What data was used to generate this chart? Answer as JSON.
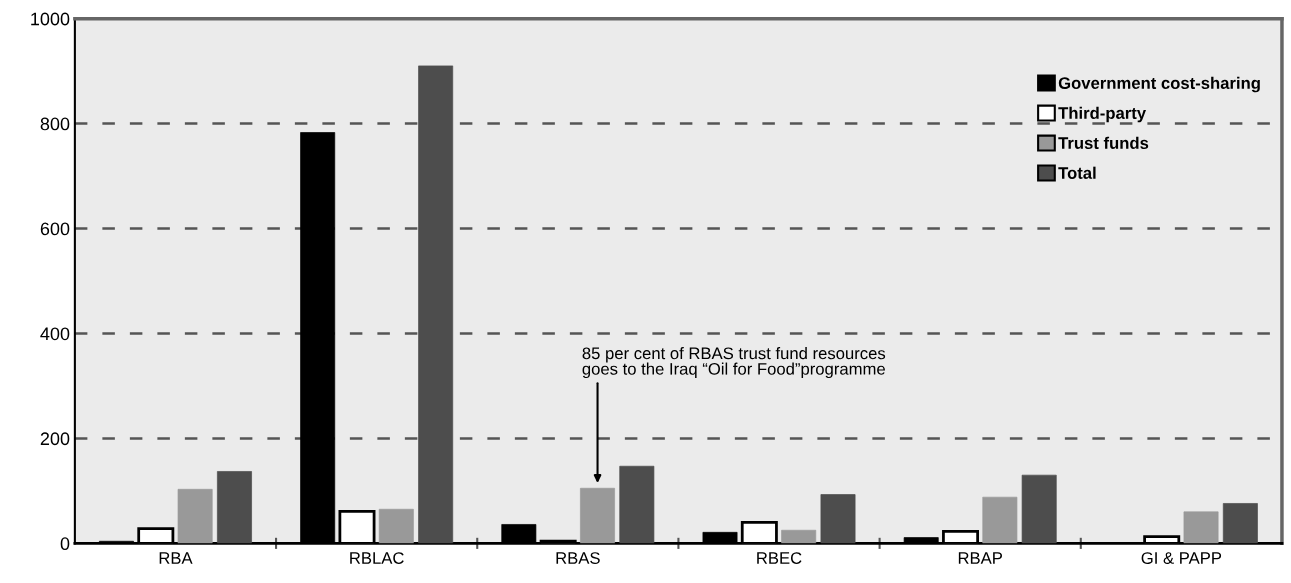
{
  "chart_data": {
    "type": "bar",
    "categories": [
      "RBA",
      "RBLAC",
      "RBAS",
      "RBEC",
      "RBAP",
      "GI & PAPP"
    ],
    "series": [
      {
        "name": "Government cost-sharing",
        "color": "#000000",
        "values": [
          4,
          783,
          36,
          21,
          11,
          0
        ]
      },
      {
        "name": "Third-party",
        "color": "#ffffff",
        "values": [
          28,
          61,
          4,
          40,
          23,
          13
        ]
      },
      {
        "name": "Trust funds",
        "color": "#999999",
        "values": [
          103,
          65,
          105,
          25,
          88,
          60
        ]
      },
      {
        "name": "Total",
        "color": "#4d4d4d",
        "values": [
          137,
          910,
          147,
          93,
          130,
          76
        ]
      }
    ],
    "ylim": [
      0,
      1000
    ],
    "yticks": [
      0,
      200,
      400,
      600,
      800,
      1000
    ],
    "grid": "y",
    "legend": "top right",
    "annotations": [
      "85 per cent of RBAS trust fund resources\ngoes to the Iraq “Oil for Food”programme"
    ]
  }
}
